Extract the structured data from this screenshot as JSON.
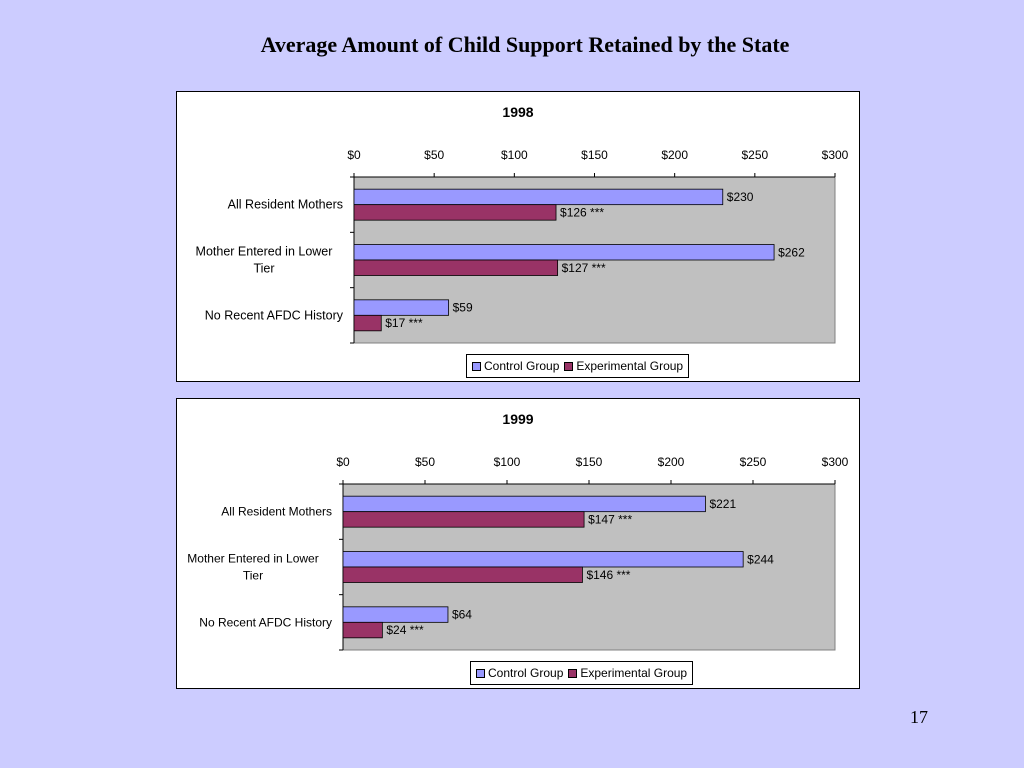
{
  "slide": {
    "title": "Average Amount of Child Support Retained by the State",
    "page_number": "17"
  },
  "legend": {
    "control_label": "Control Group",
    "experimental_label": "Experimental Group"
  },
  "colors": {
    "control": "#9999ff",
    "experimental": "#993366",
    "plot_background": "#c0c0c0",
    "slide_background": "#ccccff"
  },
  "chart_data": [
    {
      "type": "bar",
      "orientation": "horizontal",
      "title": "1998",
      "categories": [
        "All Resident Mothers",
        "Mother Entered in Lower Tier",
        "No Recent AFDC History"
      ],
      "series": [
        {
          "name": "Control Group",
          "values": [
            230,
            262,
            59
          ],
          "labels": [
            "$230",
            "$262",
            "$59"
          ]
        },
        {
          "name": "Experimental Group",
          "values": [
            126,
            127,
            17
          ],
          "labels": [
            "$126 ***",
            "$127 ***",
            "$17 ***"
          ]
        }
      ],
      "xlim": [
        0,
        300
      ],
      "xticks": [
        0,
        50,
        100,
        150,
        200,
        250,
        300
      ],
      "xtick_labels": [
        "$0",
        "$50",
        "$100",
        "$150",
        "$200",
        "$250",
        "$300"
      ],
      "legend_position": "bottom",
      "grid": false
    },
    {
      "type": "bar",
      "orientation": "horizontal",
      "title": "1999",
      "categories": [
        "All Resident Mothers",
        "Mother Entered in Lower Tier",
        "No Recent AFDC History"
      ],
      "series": [
        {
          "name": "Control Group",
          "values": [
            221,
            244,
            64
          ],
          "labels": [
            "$221",
            "$244",
            "$64"
          ]
        },
        {
          "name": "Experimental Group",
          "values": [
            147,
            146,
            24
          ],
          "labels": [
            "$147 ***",
            "$146 ***",
            "$24 ***"
          ]
        }
      ],
      "xlim": [
        0,
        300
      ],
      "xticks": [
        0,
        50,
        100,
        150,
        200,
        250,
        300
      ],
      "xtick_labels": [
        "$0",
        "$50",
        "$100",
        "$150",
        "$200",
        "$250",
        "$300"
      ],
      "legend_position": "bottom",
      "grid": false
    }
  ]
}
